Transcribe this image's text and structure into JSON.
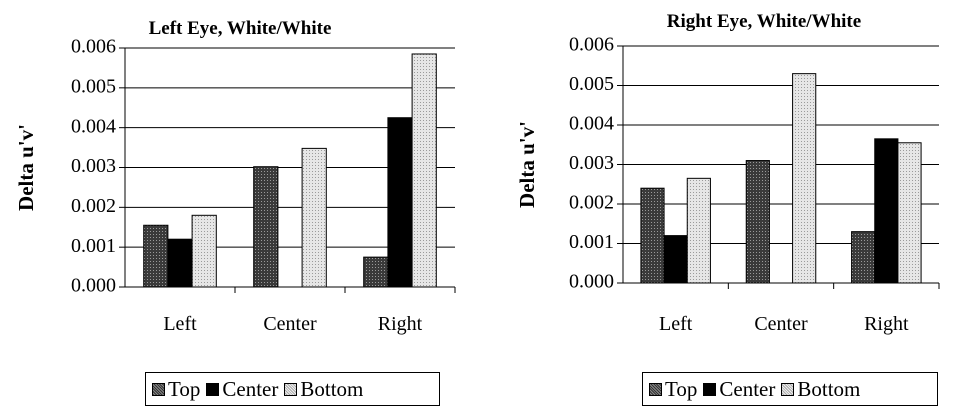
{
  "patterns": {
    "Top": "pat-dark",
    "Center": "pat-solid",
    "Bottom": "pat-light"
  },
  "colors": {
    "top": "#555555",
    "center": "#000000",
    "bottom": "#dcdcdc"
  },
  "chart_data": [
    {
      "type": "bar",
      "title": "Left Eye, White/White",
      "ylabel": "Delta u'v'",
      "xlabel": "",
      "categories": [
        "Left",
        "Center",
        "Right"
      ],
      "ylim": [
        0,
        0.006
      ],
      "yticks": [
        "0.000",
        "0.001",
        "0.002",
        "0.003",
        "0.004",
        "0.005",
        "0.006"
      ],
      "grid": true,
      "legend": "bottom",
      "series": [
        {
          "name": "Top",
          "values": [
            0.00155,
            0.00302,
            0.00075
          ]
        },
        {
          "name": "Center",
          "values": [
            0.0012,
            0,
            0.00425
          ]
        },
        {
          "name": "Bottom",
          "values": [
            0.0018,
            0.00348,
            0.00585
          ]
        }
      ]
    },
    {
      "type": "bar",
      "title": "Right Eye, White/White",
      "ylabel": "Delta u'v'",
      "xlabel": "",
      "categories": [
        "Left",
        "Center",
        "Right"
      ],
      "ylim": [
        0,
        0.006
      ],
      "yticks": [
        "0.000",
        "0.001",
        "0.002",
        "0.003",
        "0.004",
        "0.005",
        "0.006"
      ],
      "grid": true,
      "legend": "bottom",
      "series": [
        {
          "name": "Top",
          "values": [
            0.0024,
            0.0031,
            0.0013
          ]
        },
        {
          "name": "Center",
          "values": [
            0.0012,
            0,
            0.00365
          ]
        },
        {
          "name": "Bottom",
          "values": [
            0.00265,
            0.0053,
            0.00355
          ]
        }
      ]
    }
  ]
}
